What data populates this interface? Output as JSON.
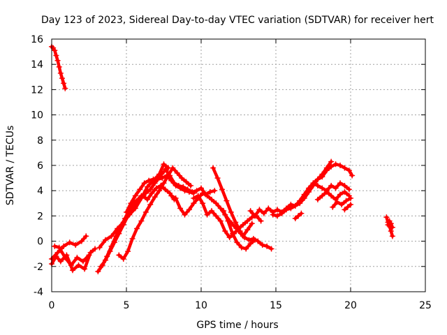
{
  "chart_data": {
    "type": "scatter",
    "title": "Day 123 of 2023, Sidereal Day-to-day VTEC variation (SDTVAR) for receiver hert",
    "xlabel": "GPS time / hours",
    "ylabel": "SDTVAR / TECUs",
    "xlim": [
      0,
      25
    ],
    "ylim": [
      -4,
      16
    ],
    "xticks": [
      "0",
      "5",
      "10",
      "15",
      "20",
      "25"
    ],
    "yticks": [
      "-4",
      "-2",
      "0",
      "2",
      "4",
      "6",
      "8",
      "10",
      "12",
      "14",
      "16"
    ],
    "grid": true,
    "marker": "+",
    "color": "#ff0000",
    "series": [
      {
        "name": "s1",
        "x": [
          0.0,
          0.1,
          0.2,
          0.3,
          0.4,
          0.5,
          0.6,
          0.7,
          0.8,
          0.9
        ],
        "y": [
          15.4,
          15.3,
          15.1,
          14.7,
          14.3,
          13.8,
          13.3,
          12.9,
          12.5,
          12.1
        ]
      },
      {
        "name": "s2",
        "x": [
          0.0,
          0.4,
          0.8,
          1.2,
          1.6,
          2.0,
          2.3
        ],
        "y": [
          -1.4,
          -0.9,
          -0.4,
          -0.1,
          -0.3,
          0.0,
          0.4
        ]
      },
      {
        "name": "s3",
        "x": [
          0.0,
          0.3,
          0.6,
          1.0,
          1.4,
          1.8,
          2.2,
          2.6,
          2.9
        ],
        "y": [
          -1.8,
          -1.2,
          -1.6,
          -1.1,
          -2.3,
          -1.9,
          -2.2,
          -0.9,
          -0.6
        ]
      },
      {
        "name": "s4",
        "x": [
          0.2,
          0.5,
          0.9,
          1.3,
          1.7,
          2.1,
          2.5
        ],
        "y": [
          -0.4,
          -0.5,
          -1.3,
          -1.9,
          -1.3,
          -1.6,
          -1.1
        ]
      },
      {
        "name": "s5",
        "x": [
          3.1,
          3.4,
          3.7,
          4.0,
          4.3,
          4.6,
          4.9,
          5.2,
          5.5,
          5.8,
          6.1,
          6.4,
          6.7,
          7.0,
          7.3,
          7.6,
          7.9,
          8.2
        ],
        "y": [
          -2.4,
          -1.9,
          -1.2,
          -0.4,
          0.4,
          1.1,
          1.8,
          2.5,
          3.1,
          3.3,
          3.6,
          3.3,
          3.8,
          4.2,
          4.4,
          4.1,
          3.8,
          3.3
        ]
      },
      {
        "name": "s6",
        "x": [
          3.3,
          3.6,
          3.9,
          4.2,
          4.5,
          4.8,
          5.1,
          5.4,
          5.7,
          6.0,
          6.3,
          6.6,
          6.9,
          7.2,
          7.5,
          7.8
        ],
        "y": [
          -2.0,
          -1.5,
          -0.8,
          -0.1,
          0.6,
          1.3,
          2.0,
          2.6,
          3.2,
          3.6,
          3.8,
          4.1,
          4.6,
          5.1,
          5.5,
          5.8
        ]
      },
      {
        "name": "s7",
        "x": [
          3.2,
          3.6,
          4.0,
          4.4,
          4.8,
          5.2,
          5.6,
          6.0,
          6.4,
          6.8,
          7.2,
          7.5,
          7.8
        ],
        "y": [
          -0.5,
          0.1,
          0.4,
          1.0,
          1.5,
          2.1,
          2.6,
          3.4,
          4.3,
          4.8,
          5.3,
          6.1,
          5.8
        ]
      },
      {
        "name": "s8",
        "x": [
          4.5,
          4.8,
          5.1,
          5.4,
          5.7,
          6.0,
          6.3,
          6.6,
          6.9,
          7.2,
          7.5,
          7.8,
          8.1,
          8.4,
          8.7,
          9.0,
          9.3
        ],
        "y": [
          -1.1,
          -1.4,
          -0.8,
          0.2,
          1.0,
          1.6,
          2.3,
          2.9,
          3.5,
          4.0,
          4.6,
          5.2,
          5.8,
          5.4,
          5.0,
          4.7,
          4.4
        ]
      },
      {
        "name": "s9",
        "x": [
          5.0,
          5.3,
          5.6,
          5.9,
          6.2,
          6.5,
          6.8,
          7.1,
          7.4,
          7.7,
          8.0,
          8.3,
          8.6,
          8.9,
          9.2,
          9.5
        ],
        "y": [
          2.3,
          3.0,
          3.6,
          4.1,
          4.6,
          4.8,
          4.9,
          4.9,
          5.0,
          5.2,
          4.8,
          4.4,
          4.2,
          4.0,
          3.9,
          3.8
        ]
      },
      {
        "name": "s10",
        "x": [
          7.6,
          7.9,
          8.2,
          8.5,
          8.8,
          9.1,
          9.4,
          9.7,
          10.0,
          10.3,
          10.6,
          10.9
        ],
        "y": [
          5.7,
          5.2,
          4.6,
          4.4,
          4.3,
          4.1,
          3.9,
          4.0,
          4.2,
          3.7,
          3.9,
          4.0
        ]
      },
      {
        "name": "s11",
        "x": [
          8.0,
          8.3,
          8.6,
          8.9,
          9.2,
          9.5,
          9.8,
          10.1,
          10.4,
          10.7,
          11.0,
          11.3,
          11.6,
          11.9,
          12.2,
          12.5,
          12.8,
          13.1,
          13.4
        ],
        "y": [
          3.6,
          3.4,
          2.6,
          2.1,
          2.5,
          3.0,
          3.4,
          3.8,
          3.6,
          3.3,
          3.0,
          2.6,
          2.1,
          1.6,
          1.2,
          0.8,
          0.4,
          0.9,
          1.4
        ]
      },
      {
        "name": "s12",
        "x": [
          9.5,
          9.8,
          10.1,
          10.4,
          10.7,
          11.0,
          11.3,
          11.6,
          11.9,
          12.2,
          12.5,
          12.8,
          13.1,
          13.4,
          13.7,
          14.0
        ],
        "y": [
          3.4,
          3.6,
          3.0,
          2.1,
          2.4,
          2.0,
          1.6,
          0.8,
          0.3,
          0.6,
          1.0,
          1.3,
          1.6,
          1.9,
          2.0,
          1.6
        ]
      },
      {
        "name": "s13",
        "x": [
          10.8,
          11.1,
          11.4,
          11.7,
          12.0,
          12.3,
          12.6,
          12.9,
          13.2,
          13.5,
          13.8,
          14.1,
          14.4,
          14.7
        ],
        "y": [
          5.8,
          5.0,
          4.1,
          3.2,
          2.3,
          1.5,
          0.8,
          0.3,
          0.1,
          0.2,
          0.0,
          -0.3,
          -0.4,
          -0.6
        ]
      },
      {
        "name": "s14",
        "x": [
          11.5,
          11.8,
          12.1,
          12.4,
          12.7,
          13.0,
          13.3,
          13.6
        ],
        "y": [
          2.4,
          1.6,
          0.6,
          -0.1,
          -0.5,
          -0.6,
          -0.2,
          0.1
        ]
      },
      {
        "name": "s15",
        "x": [
          13.3,
          13.6,
          13.9,
          14.2,
          14.5,
          14.8,
          15.1,
          15.4,
          15.7,
          16.0,
          16.3,
          16.6,
          16.9,
          17.2,
          17.5,
          17.8,
          18.1,
          18.4,
          18.7,
          19.0,
          19.3,
          19.6,
          19.9,
          20.1
        ],
        "y": [
          2.4,
          2.0,
          2.5,
          2.2,
          2.6,
          2.3,
          2.5,
          2.3,
          2.6,
          2.9,
          2.8,
          3.2,
          3.7,
          4.2,
          4.6,
          4.9,
          5.1,
          5.6,
          5.9,
          6.1,
          6.0,
          5.8,
          5.6,
          5.2
        ]
      },
      {
        "name": "s16",
        "x": [
          14.8,
          15.1,
          15.4,
          15.7,
          16.0,
          16.3,
          16.6,
          16.9,
          17.2,
          17.5,
          17.8,
          18.1,
          18.4,
          18.7
        ],
        "y": [
          2.1,
          2.0,
          2.2,
          2.5,
          2.6,
          2.8,
          3.0,
          3.4,
          3.9,
          4.4,
          4.9,
          5.3,
          5.8,
          6.3
        ]
      },
      {
        "name": "s17",
        "x": [
          17.5,
          17.8,
          18.1,
          18.4,
          18.7,
          19.0,
          19.3,
          19.6,
          19.9
        ],
        "y": [
          4.6,
          4.4,
          4.2,
          4.0,
          4.4,
          4.2,
          4.6,
          4.4,
          4.1
        ]
      },
      {
        "name": "s18",
        "x": [
          17.8,
          18.1,
          18.4,
          18.7,
          19.0,
          19.3,
          19.6,
          19.9
        ],
        "y": [
          3.3,
          3.6,
          3.9,
          3.6,
          3.3,
          3.7,
          3.9,
          3.6
        ]
      },
      {
        "name": "s19",
        "x": [
          18.8,
          19.1,
          19.4,
          19.7,
          20.0
        ],
        "y": [
          2.7,
          3.1,
          2.9,
          3.2,
          3.4
        ]
      },
      {
        "name": "s20",
        "x": [
          19.6,
          19.8,
          20.0
        ],
        "y": [
          2.5,
          2.7,
          2.9
        ]
      },
      {
        "name": "s21",
        "x": [
          16.3,
          16.5,
          16.7
        ],
        "y": [
          1.8,
          2.0,
          2.2
        ]
      },
      {
        "name": "s22",
        "x": [
          22.4,
          22.5,
          22.6,
          22.7,
          22.8
        ],
        "y": [
          1.9,
          1.5,
          1.2,
          0.8,
          0.4
        ]
      },
      {
        "name": "s23",
        "x": [
          22.5,
          22.6,
          22.7,
          22.8
        ],
        "y": [
          1.3,
          1.6,
          1.4,
          1.1
        ]
      }
    ]
  }
}
